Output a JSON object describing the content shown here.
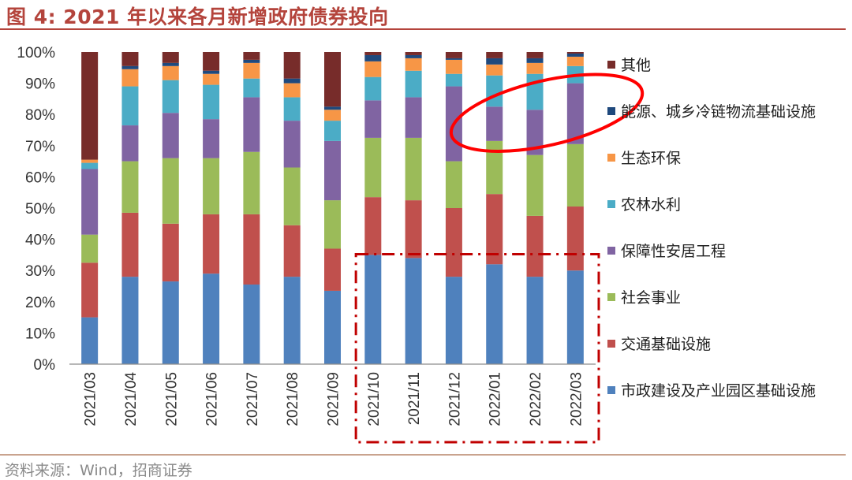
{
  "header": {
    "title": "图 4:  2021 年以来各月新增政府债券投向"
  },
  "footer": {
    "source": "资料来源：Wind，招商证券"
  },
  "chart_data": {
    "type": "bar",
    "stacked": true,
    "percent": true,
    "title": "",
    "xlabel": "",
    "ylabel": "",
    "ylim": [
      0,
      100
    ],
    "yticks": [
      "0%",
      "10%",
      "20%",
      "30%",
      "40%",
      "50%",
      "60%",
      "70%",
      "80%",
      "90%",
      "100%"
    ],
    "categories": [
      "2021/03",
      "2021/04",
      "2021/05",
      "2021/06",
      "2021/07",
      "2021/08",
      "2021/09",
      "2021/10",
      "2021/11",
      "2021/12",
      "2022/01",
      "2022/02",
      "2022/03"
    ],
    "legend_position": "right",
    "series": [
      {
        "name": "市政建设及产业园区基础设施",
        "color": "#4f81bd",
        "values": [
          15,
          28,
          26.5,
          29,
          25.5,
          28,
          23.5,
          35,
          34,
          28,
          32,
          28,
          30
        ]
      },
      {
        "name": "交通基础设施",
        "color": "#c0504d",
        "values": [
          17.5,
          20.5,
          18.5,
          19,
          22.5,
          16.5,
          13.5,
          18.5,
          18.5,
          22,
          22.5,
          19.5,
          20.5
        ]
      },
      {
        "name": "社会事业",
        "color": "#9bbb59",
        "values": [
          9,
          16.5,
          21,
          18,
          20,
          18.5,
          15.5,
          19,
          20,
          15,
          17,
          19.5,
          20
        ]
      },
      {
        "name": "保障性安居工程",
        "color": "#8064a2",
        "values": [
          21,
          11.5,
          14.5,
          12.5,
          17.5,
          15,
          19,
          12,
          13,
          24,
          11,
          14.5,
          19.5
        ]
      },
      {
        "name": "农林水利",
        "color": "#4bacc6",
        "values": [
          2,
          12.5,
          10.5,
          11,
          6,
          7.5,
          6.5,
          7.5,
          8.5,
          4,
          10,
          11.5,
          5.5
        ]
      },
      {
        "name": "生态环保",
        "color": "#f79646",
        "values": [
          1,
          5.5,
          4.5,
          3.5,
          5,
          4.5,
          3.5,
          5,
          4,
          4.5,
          3.5,
          3.5,
          3
        ]
      },
      {
        "name": "能源、城乡冷链物流基础设施",
        "color": "#1f497d",
        "values": [
          0,
          1,
          1,
          1,
          1,
          1.5,
          1,
          2,
          1,
          0.5,
          2,
          1.5,
          1
        ]
      },
      {
        "name": "其他",
        "color": "#772c2a",
        "values": [
          34.5,
          4.5,
          3.5,
          6,
          2.5,
          8.5,
          17.5,
          1,
          1,
          2,
          2,
          2,
          0.5
        ]
      }
    ],
    "annotations": [
      {
        "kind": "dash-dot-rectangle",
        "color": "#c00000",
        "covers": [
          "2021/10",
          "2022/03"
        ],
        "y_range": [
          0,
          36
        ]
      },
      {
        "kind": "ellipse",
        "color": "#ff0000",
        "covers": [
          "2022/01",
          "2022/03"
        ],
        "y_range": [
          70,
          91
        ]
      }
    ]
  }
}
